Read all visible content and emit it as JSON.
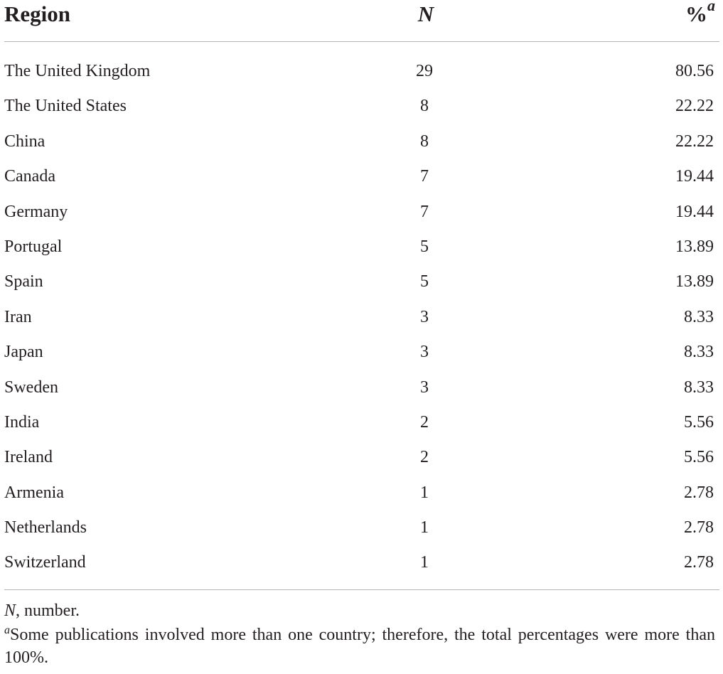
{
  "table": {
    "headers": {
      "region": "Region",
      "n": "N",
      "percent": "%",
      "percent_marker": "a"
    },
    "rows": [
      {
        "region": "The United Kingdom",
        "n": "29",
        "percent": "80.56"
      },
      {
        "region": "The United States",
        "n": "8",
        "percent": "22.22"
      },
      {
        "region": "China",
        "n": "8",
        "percent": "22.22"
      },
      {
        "region": "Canada",
        "n": "7",
        "percent": "19.44"
      },
      {
        "region": "Germany",
        "n": "7",
        "percent": "19.44"
      },
      {
        "region": "Portugal",
        "n": "5",
        "percent": "13.89"
      },
      {
        "region": "Spain",
        "n": "5",
        "percent": "13.89"
      },
      {
        "region": "Iran",
        "n": "3",
        "percent": "8.33"
      },
      {
        "region": "Japan",
        "n": "3",
        "percent": "8.33"
      },
      {
        "region": "Sweden",
        "n": "3",
        "percent": "8.33"
      },
      {
        "region": "India",
        "n": "2",
        "percent": "5.56"
      },
      {
        "region": "Ireland",
        "n": "2",
        "percent": "5.56"
      },
      {
        "region": "Armenia",
        "n": "1",
        "percent": "2.78"
      },
      {
        "region": "Netherlands",
        "n": "1",
        "percent": "2.78"
      },
      {
        "region": "Switzerland",
        "n": "1",
        "percent": "2.78"
      }
    ]
  },
  "footnotes": {
    "abbrev_symbol": "N",
    "abbrev_text": ", number.",
    "note_marker": "a",
    "note_text": "Some publications involved more than one country; therefore, the total percentages were more than 100%."
  }
}
